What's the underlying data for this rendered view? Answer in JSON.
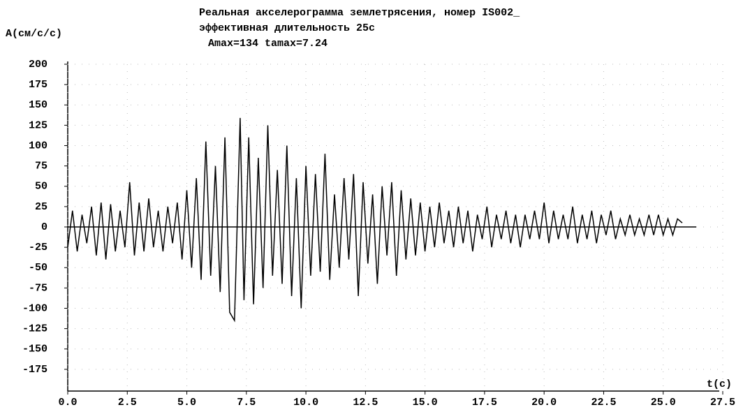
{
  "chart_data": {
    "type": "line",
    "title": "Реальная акселерограмма землетрясения,   номер IS002_",
    "subtitle": "эффективная длительность 25с",
    "annotation": "Amax=134    tamax=7.24",
    "y_label": "A(см/с/с)",
    "x_label": "t(с)",
    "color": "#000000",
    "grid": true,
    "xlim": [
      0,
      27.5
    ],
    "ylim": [
      -200,
      200
    ],
    "xticks": [
      {
        "value": 0,
        "label": "0.0"
      },
      2.5,
      {
        "value": 5,
        "label": "5.0"
      },
      7.5,
      {
        "value": 10,
        "label": "10.0"
      },
      12.5,
      {
        "value": 15,
        "label": "15.0"
      },
      17.5,
      {
        "value": 20,
        "label": "20.0"
      },
      22.5,
      {
        "value": 25,
        "label": "25.0"
      },
      27.5
    ],
    "yticks": [
      200,
      175,
      150,
      125,
      100,
      75,
      50,
      25,
      0,
      -25,
      -50,
      -75,
      -100,
      -125,
      -150,
      -175
    ],
    "x": [
      0,
      0.2,
      0.4,
      0.6,
      0.8,
      1,
      1.2,
      1.4,
      1.6,
      1.8,
      2,
      2.2,
      2.4,
      2.6,
      2.8,
      3,
      3.2,
      3.4,
      3.6,
      3.8,
      4,
      4.2,
      4.4,
      4.6,
      4.8,
      5,
      5.2,
      5.4,
      5.6,
      5.8,
      6,
      6.2,
      6.4,
      6.6,
      6.8,
      7,
      7.24,
      7.4,
      7.6,
      7.8,
      8,
      8.2,
      8.4,
      8.6,
      8.8,
      9,
      9.2,
      9.4,
      9.6,
      9.8,
      10,
      10.2,
      10.4,
      10.6,
      10.8,
      11,
      11.2,
      11.4,
      11.6,
      11.8,
      12,
      12.2,
      12.4,
      12.6,
      12.8,
      13,
      13.2,
      13.4,
      13.6,
      13.8,
      14,
      14.2,
      14.4,
      14.6,
      14.8,
      15,
      15.2,
      15.4,
      15.6,
      15.8,
      16,
      16.2,
      16.4,
      16.6,
      16.8,
      17,
      17.2,
      17.4,
      17.6,
      17.8,
      18,
      18.2,
      18.4,
      18.6,
      18.8,
      19,
      19.2,
      19.4,
      19.6,
      19.8,
      20,
      20.2,
      20.4,
      20.6,
      20.8,
      21,
      21.2,
      21.4,
      21.6,
      21.8,
      22,
      22.2,
      22.4,
      22.6,
      22.8,
      23,
      23.2,
      23.4,
      23.6,
      23.8,
      24,
      24.2,
      24.4,
      24.6,
      24.8,
      25,
      25.2,
      25.4,
      25.6,
      25.8
    ],
    "values": [
      -25,
      20,
      -30,
      15,
      -20,
      25,
      -35,
      30,
      -40,
      28,
      -30,
      20,
      -25,
      55,
      -35,
      30,
      -30,
      35,
      -25,
      20,
      -30,
      25,
      -20,
      30,
      -40,
      45,
      -50,
      60,
      -65,
      105,
      -60,
      75,
      -80,
      110,
      -105,
      -115,
      134,
      -90,
      110,
      -95,
      85,
      -75,
      125,
      -60,
      70,
      -70,
      100,
      -85,
      60,
      -100,
      75,
      -60,
      65,
      -55,
      90,
      -65,
      40,
      -50,
      60,
      -40,
      65,
      -85,
      55,
      -45,
      40,
      -70,
      50,
      -35,
      55,
      -60,
      45,
      -40,
      35,
      -35,
      30,
      -30,
      25,
      -25,
      30,
      -20,
      20,
      -25,
      25,
      -20,
      20,
      -30,
      15,
      -15,
      25,
      -25,
      15,
      -15,
      20,
      -20,
      15,
      -25,
      15,
      -15,
      20,
      -15,
      30,
      -20,
      20,
      -15,
      15,
      -15,
      25,
      -20,
      15,
      -15,
      20,
      -20,
      15,
      -10,
      20,
      -15,
      10,
      -10,
      15,
      -10,
      10,
      -10,
      15,
      -10,
      15,
      -10,
      10,
      -10,
      10,
      5
    ]
  }
}
